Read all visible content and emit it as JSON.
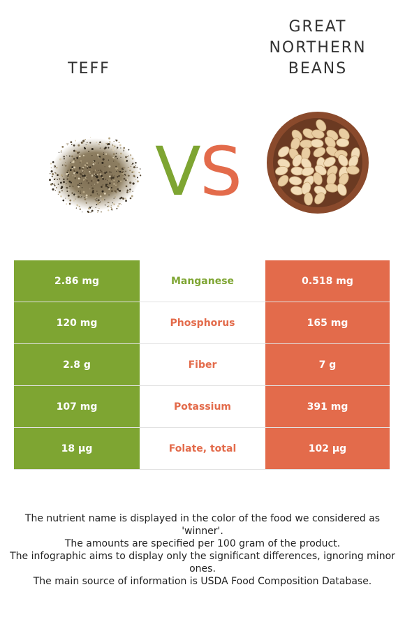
{
  "header": {
    "left_title": "TEFF",
    "right_title_lines": [
      "GREAT",
      "NORTHERN",
      "BEANS"
    ]
  },
  "vs": {
    "v": "V",
    "s": "S"
  },
  "colors": {
    "left_food": "#7ea532",
    "right_food": "#e36b4b"
  },
  "rows": [
    {
      "left": "2.86 mg",
      "nutrient": "Manganese",
      "right": "0.518 mg",
      "winner": "left"
    },
    {
      "left": "120 mg",
      "nutrient": "Phosphorus",
      "right": "165 mg",
      "winner": "right"
    },
    {
      "left": "2.8 g",
      "nutrient": "Fiber",
      "right": "7 g",
      "winner": "right"
    },
    {
      "left": "107 mg",
      "nutrient": "Potassium",
      "right": "391 mg",
      "winner": "right"
    },
    {
      "left": "18 µg",
      "nutrient": "Folate, total",
      "right": "102 µg",
      "winner": "right"
    }
  ],
  "footer": [
    "The nutrient name is displayed in the color of the food we considered as 'winner'.",
    "The amounts are specified per 100 gram of the product.",
    "The infographic aims to display only the significant differences, ignoring minor ones.",
    "The main source of information is USDA Food Composition Database."
  ]
}
